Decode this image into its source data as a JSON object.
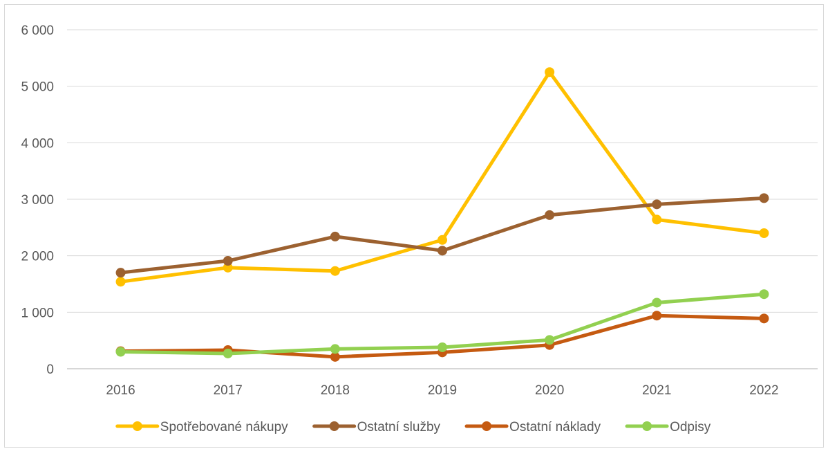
{
  "chart_data": {
    "type": "line",
    "title": "",
    "xlabel": "",
    "ylabel": "",
    "categories": [
      "2016",
      "2017",
      "2018",
      "2019",
      "2020",
      "2021",
      "2022"
    ],
    "ylim": [
      0,
      6000
    ],
    "yticks": [
      0,
      1000,
      2000,
      3000,
      4000,
      5000,
      6000
    ],
    "ytick_labels": [
      "0",
      "1 000",
      "2 000",
      "3 000",
      "4 000",
      "5 000",
      "6 000"
    ],
    "grid": "horizontal",
    "legend": "bottom",
    "series": [
      {
        "name": "Spotřebované nákupy",
        "color": "#FFC000",
        "values": [
          1540,
          1790,
          1730,
          2280,
          5250,
          2640,
          2400
        ]
      },
      {
        "name": "Ostatní služby",
        "color": "#9C6130",
        "values": [
          1700,
          1910,
          2340,
          2090,
          2720,
          2910,
          3020
        ]
      },
      {
        "name": "Ostatní náklady",
        "color": "#C55A11",
        "values": [
          310,
          330,
          210,
          290,
          420,
          940,
          890
        ]
      },
      {
        "name": "Odpisy",
        "color": "#92D050",
        "values": [
          300,
          270,
          350,
          380,
          510,
          1170,
          1320
        ]
      }
    ]
  }
}
